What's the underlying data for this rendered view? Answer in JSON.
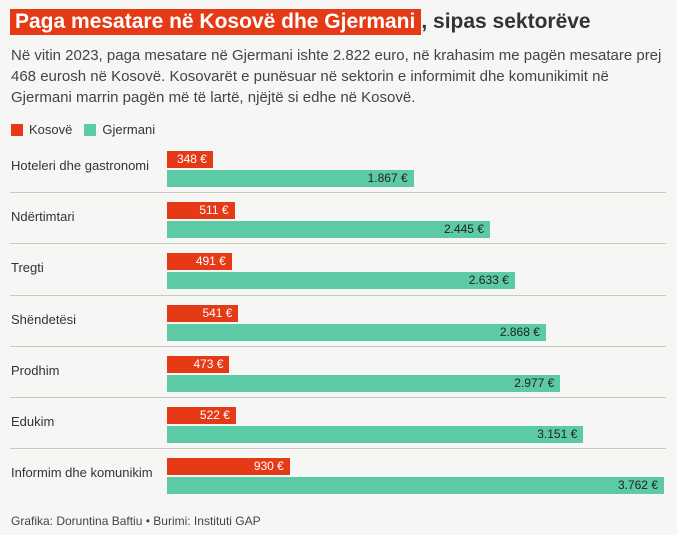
{
  "header": {
    "title_highlight": "Paga mesatare në Kosovë dhe Gjermani",
    "title_rest": ", sipas sektorëve",
    "subtitle": "Në vitin 2023, paga mesatare në Gjermani ishte 2.822 euro, në krahasim me pagën mesatare prej 468 eurosh në Kosovë. Kosovarët e punësuar në sektorin e informimit dhe komunikimit në Gjermani marrin pagën më të lartë, njëjtë si edhe në Kosovë."
  },
  "colors": {
    "kosove": "#e63a17",
    "gjermani": "#5ccba5"
  },
  "chart_data": {
    "type": "bar",
    "orientation": "horizontal",
    "categories": [
      "Hoteleri dhe gastronomi",
      "Ndërtimtari",
      "Tregti",
      "Shëndetësi",
      "Prodhim",
      "Edukim",
      "Informim dhe komunikim"
    ],
    "series": [
      {
        "name": "Kosovë",
        "values": [
          348,
          511,
          491,
          541,
          473,
          522,
          930
        ],
        "labels": [
          "348 €",
          "511 €",
          "491 €",
          "541 €",
          "473 €",
          "522 €",
          "930 €"
        ]
      },
      {
        "name": "Gjermani",
        "values": [
          1867,
          2445,
          2633,
          2868,
          2977,
          3151,
          3762
        ],
        "labels": [
          "1.867 €",
          "2.445 €",
          "2.633 €",
          "2.868 €",
          "2.977 €",
          "3.151 €",
          "3.762 €"
        ]
      }
    ],
    "xlim": [
      0,
      3762
    ],
    "legend": "top-left",
    "grid": false
  },
  "footer": {
    "credit": "Grafika: Doruntina Baftiu • Burimi: Instituti GAP"
  }
}
